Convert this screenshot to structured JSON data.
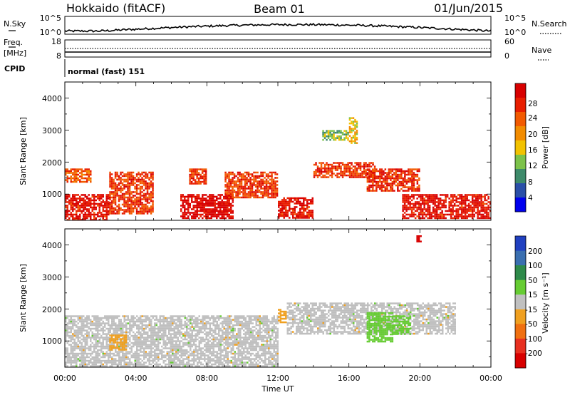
{
  "header": {
    "station": "Hokkaido (fitACF)",
    "beam": "Beam 01",
    "date": "01/Jun/2015"
  },
  "top_panel": {
    "left_label": "N.Sky",
    "left_ticks": [
      "10^5",
      "10^0"
    ],
    "right_label": "N.Search",
    "right_ticks": [
      "10^5",
      "10^0"
    ]
  },
  "freq_panel": {
    "left_label_1": "Freq.",
    "left_label_2": "[MHz]",
    "left_ticks": [
      "18",
      "8"
    ],
    "right_label": "Nave",
    "right_ticks": [
      "60",
      "0"
    ]
  },
  "cpid": {
    "label": "CPID",
    "value": "normal (fast) 151"
  },
  "colors": {
    "power_scale": [
      "#0000ee",
      "#2a4fa8",
      "#3d8a6a",
      "#7cc24a",
      "#f2c200",
      "#f28c00",
      "#f25a00",
      "#e81e00",
      "#d80000"
    ],
    "velocity_scale": [
      "#2040c0",
      "#3a6fb0",
      "#2e8a4a",
      "#66cc33",
      "#c0c0c0",
      "#f0a020",
      "#f07010",
      "#e83020",
      "#d80000"
    ],
    "ground_scatter": "#bfbfbf"
  },
  "chart_data": [
    {
      "type": "heatmap",
      "title": "",
      "xlabel": "",
      "ylabel": "Slant Range [km]",
      "x_range_hours": [
        0,
        24
      ],
      "y_range_km": [
        180,
        4500
      ],
      "y_ticks": [
        "4000",
        "3000",
        "2000",
        "1000"
      ],
      "colorbar": {
        "label": "Power [dB]",
        "ticks": [
          "28",
          "24",
          "20",
          "16",
          "12",
          "8",
          "4"
        ],
        "range": [
          0,
          30
        ]
      },
      "regions": [
        {
          "t0": 0.0,
          "t1": 2.5,
          "r0": 180,
          "r1": 1000,
          "value": 27
        },
        {
          "t0": 2.5,
          "t1": 5.0,
          "r0": 400,
          "r1": 1700,
          "value": 24
        },
        {
          "t0": 6.5,
          "t1": 9.5,
          "r0": 250,
          "r1": 1000,
          "value": 29
        },
        {
          "t0": 7.0,
          "t1": 8.0,
          "r0": 1300,
          "r1": 1800,
          "value": 25
        },
        {
          "t0": 9.0,
          "t1": 12.0,
          "r0": 900,
          "r1": 1700,
          "value": 24
        },
        {
          "t0": 12.0,
          "t1": 14.0,
          "r0": 250,
          "r1": 900,
          "value": 27
        },
        {
          "t0": 14.0,
          "t1": 17.5,
          "r0": 1500,
          "r1": 2000,
          "value": 24
        },
        {
          "t0": 17.0,
          "t1": 20.0,
          "r0": 1100,
          "r1": 1800,
          "value": 25
        },
        {
          "t0": 19.0,
          "t1": 24.0,
          "r0": 250,
          "r1": 1000,
          "value": 27
        },
        {
          "t0": 14.5,
          "t1": 16.0,
          "r0": 2700,
          "r1": 3000,
          "value": 12
        },
        {
          "t0": 16.0,
          "t1": 16.5,
          "r0": 2600,
          "r1": 3400,
          "value": 16
        },
        {
          "t0": 0.0,
          "t1": 1.5,
          "r0": 1400,
          "r1": 1800,
          "value": 22
        }
      ]
    },
    {
      "type": "heatmap",
      "title": "",
      "xlabel": "Time UT",
      "ylabel": "Slant Range [km]",
      "x_range_hours": [
        0,
        24
      ],
      "x_ticks": [
        "00:00",
        "04:00",
        "08:00",
        "12:00",
        "16:00",
        "20:00",
        "00:00"
      ],
      "y_range_km": [
        180,
        4500
      ],
      "y_ticks": [
        "4000",
        "3000",
        "2000",
        "1000"
      ],
      "colorbar": {
        "label": "Velocity [m s⁻¹]",
        "ticks": [
          "200",
          "100",
          "50",
          "15",
          "-15",
          "-50",
          "-100",
          "-200"
        ],
        "range": [
          -250,
          250
        ]
      },
      "regions": [
        {
          "t0": 0.0,
          "t1": 12.0,
          "r0": 180,
          "r1": 1800,
          "value": 0,
          "ground_scatter": true
        },
        {
          "t0": 12.5,
          "t1": 22.0,
          "r0": 1200,
          "r1": 2200,
          "value": 0,
          "ground_scatter": true
        },
        {
          "t0": 17.0,
          "t1": 18.5,
          "r0": 1000,
          "r1": 1900,
          "value": 45
        },
        {
          "t0": 18.5,
          "t1": 19.5,
          "r0": 1200,
          "r1": 1800,
          "value": 30
        },
        {
          "t0": 2.5,
          "t1": 3.5,
          "r0": 700,
          "r1": 1200,
          "value": -40
        },
        {
          "t0": 12.0,
          "t1": 12.5,
          "r0": 1600,
          "r1": 2000,
          "value": -40
        },
        {
          "t0": 19.8,
          "t1": 20.1,
          "r0": 4100,
          "r1": 4300,
          "value": -220
        }
      ]
    }
  ]
}
